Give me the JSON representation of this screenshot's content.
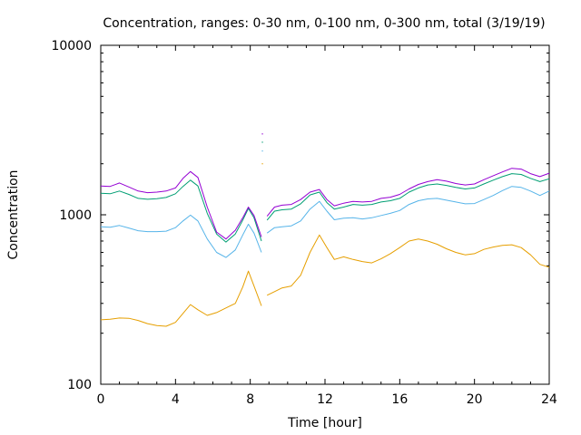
{
  "chart_data": {
    "type": "line",
    "title": "Concentration, ranges: 0-30 nm, 0-100 nm, 0-300 nm, total (3/19/19)",
    "xlabel": "Time [hour]",
    "ylabel": "Concentration",
    "xlim": [
      0,
      24
    ],
    "ylim": [
      100,
      10000
    ],
    "yscale": "log",
    "grid": false,
    "legend": "none",
    "xticks": [
      0,
      4,
      8,
      12,
      16,
      20,
      24
    ],
    "xtick_labels": [
      "0",
      "4",
      "8",
      "12",
      "16",
      "20",
      "24"
    ],
    "yticks": [
      100,
      1000,
      10000
    ],
    "ytick_labels": [
      "100",
      "1000",
      "10000"
    ],
    "series": [
      {
        "range": "0-30 nm",
        "color": "#e69f00",
        "segments": [
          [
            [
              0,
              240
            ],
            [
              0.5,
              242
            ],
            [
              1,
              246
            ],
            [
              1.5,
              245
            ],
            [
              2,
              238
            ],
            [
              2.5,
              228
            ],
            [
              3,
              222
            ],
            [
              3.5,
              220
            ],
            [
              4,
              232
            ],
            [
              4.4,
              262
            ],
            [
              4.8,
              295
            ],
            [
              5.2,
              275
            ],
            [
              5.7,
              255
            ],
            [
              6.2,
              265
            ],
            [
              6.7,
              282
            ],
            [
              7.2,
              300
            ],
            [
              7.6,
              375
            ],
            [
              7.9,
              465
            ],
            [
              8.2,
              380
            ],
            [
              8.6,
              290
            ]
          ],
          [
            [
              8.9,
              335
            ],
            [
              9.3,
              352
            ],
            [
              9.7,
              370
            ],
            [
              10.2,
              380
            ],
            [
              10.7,
              440
            ],
            [
              11.2,
              600
            ],
            [
              11.7,
              760
            ],
            [
              12.1,
              640
            ],
            [
              12.5,
              545
            ],
            [
              13,
              565
            ],
            [
              13.5,
              545
            ],
            [
              14,
              530
            ],
            [
              14.5,
              520
            ],
            [
              15,
              550
            ],
            [
              15.5,
              590
            ],
            [
              16,
              640
            ],
            [
              16.5,
              700
            ],
            [
              17,
              720
            ],
            [
              17.5,
              700
            ],
            [
              18,
              670
            ],
            [
              18.5,
              630
            ],
            [
              19,
              600
            ],
            [
              19.5,
              580
            ],
            [
              20,
              590
            ],
            [
              20.5,
              625
            ],
            [
              21,
              645
            ],
            [
              21.5,
              660
            ],
            [
              22,
              665
            ],
            [
              22.5,
              640
            ],
            [
              23,
              580
            ],
            [
              23.5,
              510
            ],
            [
              24,
              490
            ]
          ]
        ]
      },
      {
        "range": "0-100 nm",
        "color": "#56b4e9",
        "segments": [
          [
            [
              0,
              850
            ],
            [
              0.5,
              845
            ],
            [
              1,
              865
            ],
            [
              1.5,
              835
            ],
            [
              2,
              805
            ],
            [
              2.5,
              795
            ],
            [
              3,
              795
            ],
            [
              3.5,
              800
            ],
            [
              4,
              840
            ],
            [
              4.4,
              920
            ],
            [
              4.8,
              995
            ],
            [
              5.2,
              920
            ],
            [
              5.7,
              720
            ],
            [
              6.2,
              600
            ],
            [
              6.7,
              560
            ],
            [
              7.2,
              620
            ],
            [
              7.6,
              760
            ],
            [
              7.9,
              880
            ],
            [
              8.2,
              780
            ],
            [
              8.6,
              600
            ]
          ],
          [
            [
              8.9,
              780
            ],
            [
              9.3,
              840
            ],
            [
              9.7,
              850
            ],
            [
              10.2,
              860
            ],
            [
              10.7,
              920
            ],
            [
              11.2,
              1080
            ],
            [
              11.7,
              1200
            ],
            [
              12.1,
              1050
            ],
            [
              12.5,
              935
            ],
            [
              13,
              955
            ],
            [
              13.5,
              960
            ],
            [
              14,
              945
            ],
            [
              14.5,
              960
            ],
            [
              15,
              990
            ],
            [
              15.5,
              1020
            ],
            [
              16,
              1060
            ],
            [
              16.5,
              1150
            ],
            [
              17,
              1210
            ],
            [
              17.5,
              1240
            ],
            [
              18,
              1250
            ],
            [
              18.5,
              1220
            ],
            [
              19,
              1190
            ],
            [
              19.5,
              1160
            ],
            [
              20,
              1165
            ],
            [
              20.5,
              1230
            ],
            [
              21,
              1300
            ],
            [
              21.5,
              1390
            ],
            [
              22,
              1470
            ],
            [
              22.5,
              1450
            ],
            [
              23,
              1380
            ],
            [
              23.5,
              1300
            ],
            [
              24,
              1380
            ]
          ]
        ]
      },
      {
        "range": "0-300 nm",
        "color": "#009e73",
        "segments": [
          [
            [
              0,
              1340
            ],
            [
              0.5,
              1330
            ],
            [
              1,
              1380
            ],
            [
              1.5,
              1320
            ],
            [
              2,
              1250
            ],
            [
              2.5,
              1235
            ],
            [
              3,
              1245
            ],
            [
              3.5,
              1265
            ],
            [
              4,
              1330
            ],
            [
              4.4,
              1470
            ],
            [
              4.8,
              1600
            ],
            [
              5.2,
              1480
            ],
            [
              5.7,
              1020
            ],
            [
              6.2,
              770
            ],
            [
              6.7,
              690
            ],
            [
              7.2,
              770
            ],
            [
              7.6,
              930
            ],
            [
              7.9,
              1090
            ],
            [
              8.2,
              960
            ],
            [
              8.6,
              700
            ]
          ],
          [
            [
              8.9,
              930
            ],
            [
              9.3,
              1050
            ],
            [
              9.7,
              1070
            ],
            [
              10.2,
              1080
            ],
            [
              10.7,
              1160
            ],
            [
              11.2,
              1310
            ],
            [
              11.7,
              1360
            ],
            [
              12.1,
              1180
            ],
            [
              12.5,
              1080
            ],
            [
              13,
              1110
            ],
            [
              13.5,
              1150
            ],
            [
              14,
              1140
            ],
            [
              14.5,
              1150
            ],
            [
              15,
              1190
            ],
            [
              15.5,
              1210
            ],
            [
              16,
              1250
            ],
            [
              16.5,
              1360
            ],
            [
              17,
              1440
            ],
            [
              17.5,
              1500
            ],
            [
              18,
              1520
            ],
            [
              18.5,
              1490
            ],
            [
              19,
              1450
            ],
            [
              19.5,
              1420
            ],
            [
              20,
              1440
            ],
            [
              20.5,
              1520
            ],
            [
              21,
              1600
            ],
            [
              21.5,
              1680
            ],
            [
              22,
              1750
            ],
            [
              22.5,
              1730
            ],
            [
              23,
              1640
            ],
            [
              23.5,
              1570
            ],
            [
              24,
              1630
            ]
          ]
        ]
      },
      {
        "range": "total",
        "color": "#9400d3",
        "segments": [
          [
            [
              0,
              1480
            ],
            [
              0.5,
              1470
            ],
            [
              1,
              1540
            ],
            [
              1.5,
              1460
            ],
            [
              2,
              1380
            ],
            [
              2.5,
              1350
            ],
            [
              3,
              1360
            ],
            [
              3.5,
              1380
            ],
            [
              4,
              1440
            ],
            [
              4.4,
              1640
            ],
            [
              4.8,
              1800
            ],
            [
              5.2,
              1660
            ],
            [
              5.7,
              1110
            ],
            [
              6.2,
              790
            ],
            [
              6.7,
              720
            ],
            [
              7.2,
              810
            ],
            [
              7.6,
              960
            ],
            [
              7.9,
              1110
            ],
            [
              8.2,
              990
            ],
            [
              8.6,
              740
            ]
          ],
          [
            [
              8.9,
              980
            ],
            [
              9.3,
              1110
            ],
            [
              9.7,
              1140
            ],
            [
              10.2,
              1150
            ],
            [
              10.7,
              1230
            ],
            [
              11.2,
              1360
            ],
            [
              11.7,
              1410
            ],
            [
              12.1,
              1230
            ],
            [
              12.5,
              1130
            ],
            [
              13,
              1170
            ],
            [
              13.5,
              1200
            ],
            [
              14,
              1190
            ],
            [
              14.5,
              1200
            ],
            [
              15,
              1250
            ],
            [
              15.5,
              1270
            ],
            [
              16,
              1320
            ],
            [
              16.5,
              1420
            ],
            [
              17,
              1510
            ],
            [
              17.5,
              1570
            ],
            [
              18,
              1610
            ],
            [
              18.5,
              1580
            ],
            [
              19,
              1530
            ],
            [
              19.5,
              1500
            ],
            [
              20,
              1520
            ],
            [
              20.5,
              1610
            ],
            [
              21,
              1700
            ],
            [
              21.5,
              1790
            ],
            [
              22,
              1880
            ],
            [
              22.5,
              1860
            ],
            [
              23,
              1750
            ],
            [
              23.5,
              1680
            ],
            [
              24,
              1760
            ]
          ]
        ]
      }
    ],
    "outliers": [
      {
        "x": 8.65,
        "y": 3000,
        "color": "#9400d3"
      },
      {
        "x": 8.65,
        "y": 2680,
        "color": "#009e73"
      },
      {
        "x": 8.65,
        "y": 2380,
        "color": "#56b4e9"
      },
      {
        "x": 8.65,
        "y": 2000,
        "color": "#e69f00"
      }
    ]
  }
}
